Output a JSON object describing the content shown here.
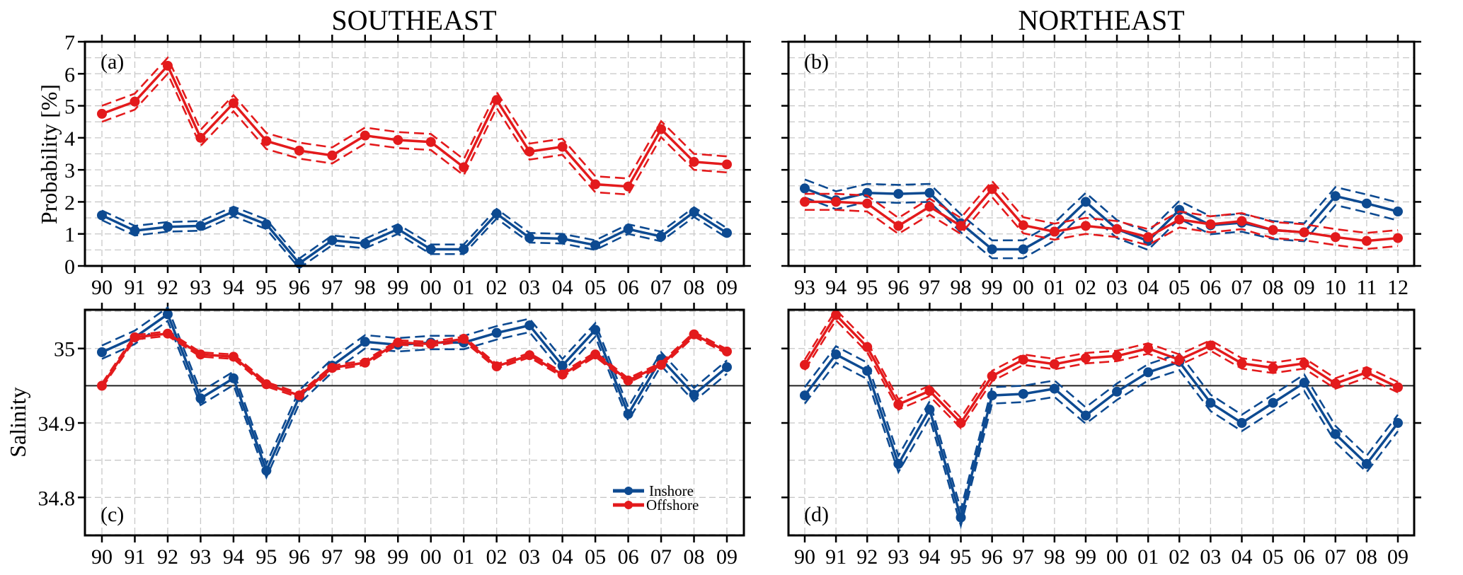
{
  "figure": {
    "column_titles": [
      "SOUTHEAST",
      "NORTHEAST"
    ],
    "legend": {
      "placement": "lower-right of panel (c)",
      "entries": [
        "Inshore",
        "Offshore"
      ]
    },
    "colors": {
      "inshore": "#0d4a91",
      "offshore": "#e31a1c"
    }
  },
  "chart_data": [
    {
      "type": "line",
      "panel": "(a)",
      "title": "SOUTHEAST",
      "xlabel": "",
      "ylabel": "Probability [%]",
      "ylim": [
        0,
        7
      ],
      "yticks": [
        0,
        1,
        2,
        3,
        4,
        5,
        6,
        7
      ],
      "ytick_labels": [
        "0",
        "1",
        "2",
        "3",
        "4",
        "5",
        "6",
        "7"
      ],
      "grid": true,
      "categories": [
        "90",
        "91",
        "92",
        "93",
        "94",
        "95",
        "96",
        "97",
        "98",
        "99",
        "00",
        "01",
        "02",
        "03",
        "04",
        "05",
        "06",
        "07",
        "08",
        "09"
      ],
      "series": [
        {
          "name": "Inshore",
          "values": [
            1.58,
            1.1,
            1.22,
            1.25,
            1.7,
            1.3,
            0.08,
            0.8,
            0.7,
            1.15,
            0.52,
            0.52,
            1.63,
            0.88,
            0.85,
            0.65,
            1.15,
            0.92,
            1.68,
            1.03
          ],
          "ci_halfwidth": 0.15
        },
        {
          "name": "Offshore",
          "values": [
            4.75,
            5.13,
            6.25,
            4.0,
            5.08,
            3.9,
            3.6,
            3.45,
            4.07,
            3.93,
            3.87,
            3.08,
            5.18,
            3.57,
            3.72,
            2.55,
            2.48,
            4.27,
            3.25,
            3.17
          ],
          "ci_halfwidth": 0.25
        }
      ]
    },
    {
      "type": "line",
      "panel": "(b)",
      "title": "NORTHEAST",
      "xlabel": "",
      "ylabel": "",
      "ylim": [
        0,
        7
      ],
      "yticks": [
        0,
        1,
        2,
        3,
        4,
        5,
        6,
        7
      ],
      "ytick_labels": [],
      "grid": true,
      "categories": [
        "93",
        "94",
        "95",
        "96",
        "97",
        "98",
        "99",
        "00",
        "01",
        "02",
        "03",
        "04",
        "05",
        "06",
        "07",
        "08",
        "09",
        "10",
        "11",
        "12"
      ],
      "series": [
        {
          "name": "Inshore",
          "values": [
            2.42,
            2.05,
            2.28,
            2.25,
            2.28,
            1.33,
            0.52,
            0.52,
            1.07,
            2.0,
            1.15,
            0.78,
            1.75,
            1.27,
            1.35,
            1.12,
            1.05,
            2.18,
            1.95,
            1.7
          ],
          "ci_halfwidth": 0.28
        },
        {
          "name": "Offshore",
          "values": [
            2.0,
            2.0,
            1.95,
            1.25,
            1.85,
            1.25,
            2.4,
            1.27,
            1.07,
            1.25,
            1.15,
            0.9,
            1.45,
            1.3,
            1.4,
            1.12,
            1.05,
            0.9,
            0.78,
            0.87
          ],
          "ci_halfwidth": 0.25
        }
      ]
    },
    {
      "type": "line",
      "panel": "(c)",
      "title": "",
      "xlabel": "",
      "ylabel": "Salinity",
      "ylim": [
        34.749,
        35.052
      ],
      "yticks": [
        34.8,
        34.9,
        35.0
      ],
      "ytick_labels": [
        "34.8",
        "34.9",
        "35"
      ],
      "reference_line": 34.95,
      "grid": true,
      "categories": [
        "90",
        "91",
        "92",
        "93",
        "94",
        "95",
        "96",
        "97",
        "98",
        "99",
        "00",
        "01",
        "02",
        "03",
        "04",
        "05",
        "06",
        "07",
        "08",
        "09"
      ],
      "series": [
        {
          "name": "Inshore",
          "values": [
            34.995,
            35.015,
            35.046,
            34.933,
            34.96,
            34.836,
            34.935,
            34.977,
            35.009,
            35.005,
            35.008,
            35.008,
            35.021,
            35.031,
            34.977,
            35.025,
            34.912,
            34.986,
            34.938,
            34.975
          ],
          "ci_halfwidth": 0.009
        },
        {
          "name": "Offshore",
          "values": [
            34.95,
            35.015,
            35.02,
            34.992,
            34.989,
            34.952,
            34.937,
            34.974,
            34.981,
            35.008,
            35.006,
            35.013,
            34.976,
            34.991,
            34.965,
            34.992,
            34.957,
            34.978,
            35.019,
            34.996
          ],
          "ci_halfwidth": 0.003
        }
      ],
      "legend": [
        "Inshore",
        "Offshore"
      ]
    },
    {
      "type": "line",
      "panel": "(d)",
      "title": "",
      "xlabel": "",
      "ylabel": "",
      "ylim": [
        34.749,
        35.052
      ],
      "yticks": [
        34.8,
        34.9,
        35.0
      ],
      "ytick_labels": [],
      "reference_line": 34.95,
      "grid": true,
      "categories": [
        "90",
        "91",
        "92",
        "93",
        "94",
        "95",
        "96",
        "97",
        "98",
        "99",
        "00",
        "01",
        "02",
        "03",
        "04",
        "05",
        "06",
        "07",
        "08",
        "09"
      ],
      "series": [
        {
          "name": "Inshore",
          "values": [
            34.937,
            34.992,
            34.97,
            34.845,
            34.918,
            34.773,
            34.937,
            34.939,
            34.946,
            34.91,
            34.942,
            34.968,
            34.982,
            34.927,
            34.9,
            34.927,
            34.954,
            34.885,
            34.845,
            34.9
          ],
          "ci_halfwidth": 0.011
        },
        {
          "name": "Offshore",
          "values": [
            34.978,
            35.045,
            35.002,
            34.925,
            34.943,
            34.9,
            34.963,
            34.985,
            34.979,
            34.987,
            34.99,
            35.0,
            34.985,
            35.004,
            34.98,
            34.974,
            34.98,
            34.953,
            34.968,
            34.948
          ],
          "ci_halfwidth": 0.007
        }
      ]
    }
  ]
}
